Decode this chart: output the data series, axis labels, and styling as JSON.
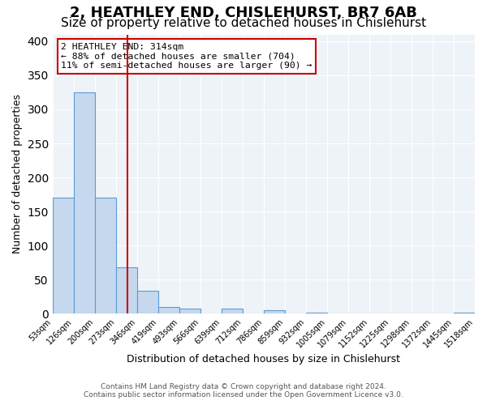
{
  "title": "2, HEATHLEY END, CHISLEHURST, BR7 6AB",
  "subtitle": "Size of property relative to detached houses in Chislehurst",
  "xlabel": "Distribution of detached houses by size in Chislehurst",
  "ylabel": "Number of detached properties",
  "bin_labels": [
    "53sqm",
    "126sqm",
    "200sqm",
    "273sqm",
    "346sqm",
    "419sqm",
    "493sqm",
    "566sqm",
    "639sqm",
    "712sqm",
    "786sqm",
    "859sqm",
    "932sqm",
    "1005sqm",
    "1079sqm",
    "1152sqm",
    "1225sqm",
    "1298sqm",
    "1372sqm",
    "1445sqm",
    "1518sqm"
  ],
  "bar_heights": [
    170,
    325,
    170,
    68,
    34,
    10,
    8,
    0,
    8,
    0,
    5,
    0,
    2,
    0,
    0,
    0,
    0,
    0,
    0,
    2
  ],
  "bar_color": "#c5d8ed",
  "bar_edge_color": "#5b9bd5",
  "vline_position": 3.562,
  "vline_color": "#cc0000",
  "annotation_title": "2 HEATHLEY END: 314sqm",
  "annotation_line1": "← 88% of detached houses are smaller (704)",
  "annotation_line2": "11% of semi-detached houses are larger (90) →",
  "annotation_box_color": "#cc0000",
  "ylim": [
    0,
    410
  ],
  "yticks": [
    0,
    50,
    100,
    150,
    200,
    250,
    300,
    350,
    400
  ],
  "footer1": "Contains HM Land Registry data © Crown copyright and database right 2024.",
  "footer2": "Contains public sector information licensed under the Open Government Licence v3.0.",
  "bg_color": "#eef3f8",
  "title_fontsize": 13,
  "subtitle_fontsize": 11
}
